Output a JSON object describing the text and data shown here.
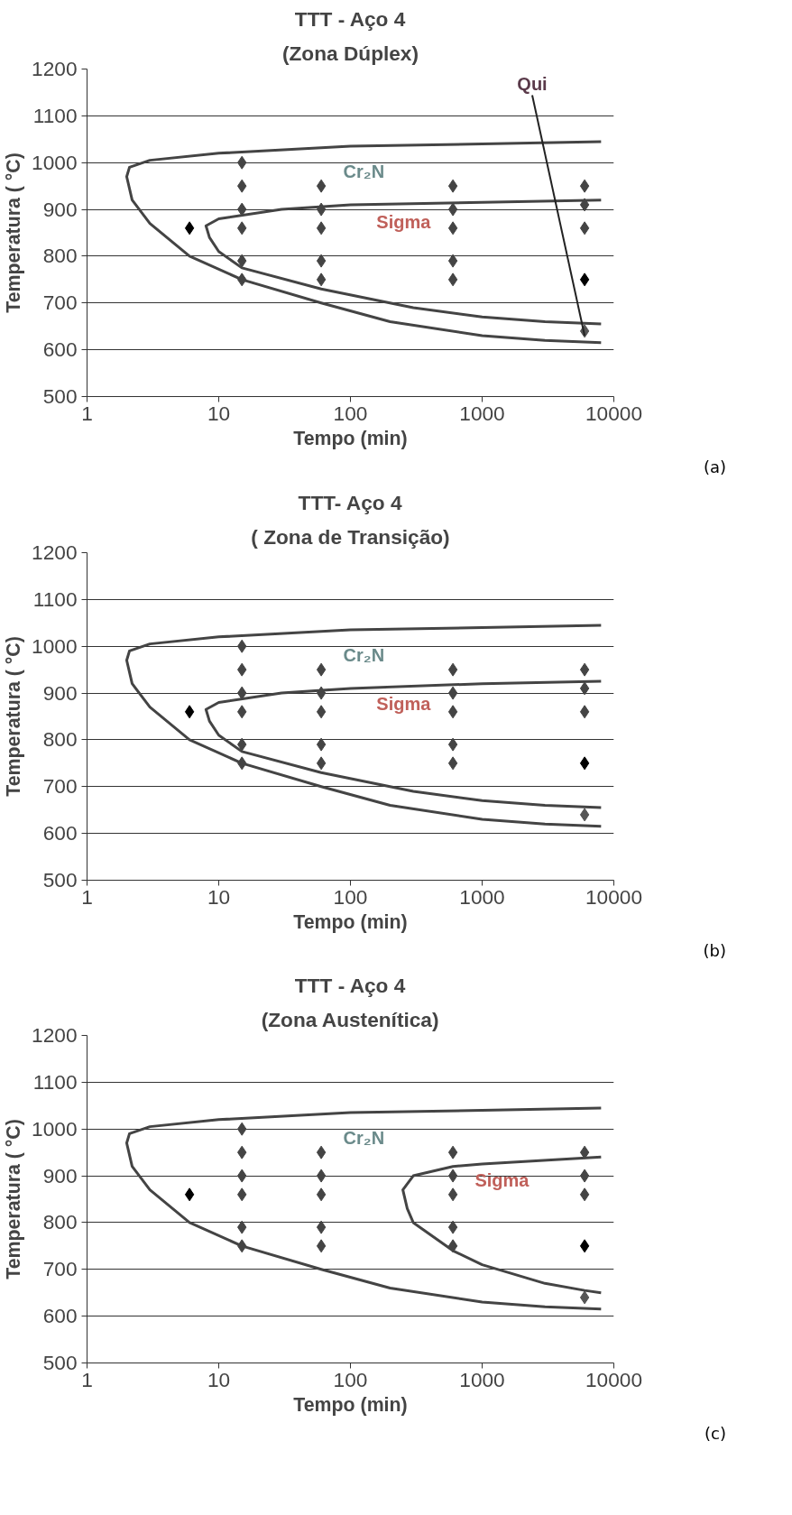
{
  "chart_data": [
    {
      "type": "scatter",
      "title": "TTT - Aço 4",
      "subtitle": "(Zona Dúplex)",
      "xlabel": "Tempo (min)",
      "ylabel": "Temperatura ( °C)",
      "log": "x",
      "xlim": [
        1,
        10000
      ],
      "xticks": [
        1,
        10,
        100,
        1000,
        10000
      ],
      "ylim": [
        500,
        1200
      ],
      "yticks": [
        500,
        600,
        700,
        800,
        900,
        1000,
        1100,
        1200
      ],
      "grid": "y",
      "annotations": [
        "Cr₂N",
        "Sigma",
        {
          "text": "Qui",
          "x": 6000,
          "y": 630
        },
        "(a)"
      ],
      "series": [
        {
          "marker": "diamond",
          "x": [
            6,
            15,
            15,
            15,
            15,
            15,
            15,
            60,
            60,
            60,
            60,
            60,
            600,
            600,
            600,
            600,
            600,
            6000,
            6000,
            6000,
            6000,
            6000
          ],
          "values": [
            860,
            1000,
            950,
            900,
            860,
            790,
            750,
            950,
            900,
            860,
            790,
            750,
            950,
            900,
            860,
            790,
            750,
            950,
            910,
            860,
            750,
            640
          ],
          "colors": [
            "#000000",
            "#444444",
            "#444444",
            "#444444",
            "#444444",
            "#444444",
            "#444444",
            "#444444",
            "#444444",
            "#444444",
            "#444444",
            "#444444",
            "#444444",
            "#444444",
            "#444444",
            "#444444",
            "#444444",
            "#444444",
            "#444444",
            "#444444",
            "#000000",
            "#555555"
          ]
        },
        {
          "type": "line",
          "marker": "none",
          "color": "#444444",
          "x": [
            8000,
            1000,
            100,
            10,
            3,
            2.1,
            2,
            2.2,
            3,
            6,
            15,
            60,
            200,
            1000,
            3000,
            8000
          ],
          "values": [
            1045,
            1040,
            1035,
            1020,
            1005,
            990,
            970,
            920,
            870,
            800,
            750,
            700,
            660,
            630,
            620,
            615
          ]
        },
        {
          "type": "line",
          "marker": "none",
          "color": "#444444",
          "x": [
            8000,
            1000,
            100,
            30,
            10,
            8,
            8.5,
            10,
            15,
            60,
            300,
            1000,
            3000,
            8000
          ],
          "values": [
            920,
            915,
            910,
            900,
            880,
            865,
            840,
            810,
            775,
            730,
            690,
            670,
            660,
            655
          ]
        }
      ]
    },
    {
      "type": "scatter",
      "title": "TTT- Aço 4",
      "subtitle": "( Zona de Transição)",
      "xlabel": "Tempo (min)",
      "ylabel": "Temperatura ( °C)",
      "log": "x",
      "xlim": [
        1,
        10000
      ],
      "xticks": [
        1,
        10,
        100,
        1000,
        10000
      ],
      "ylim": [
        500,
        1200
      ],
      "yticks": [
        500,
        600,
        700,
        800,
        900,
        1000,
        1100,
        1200
      ],
      "grid": "y",
      "annotations": [
        "Cr₂N",
        "Sigma",
        "(b)"
      ],
      "series": [
        {
          "marker": "diamond",
          "x": [
            6,
            15,
            15,
            15,
            15,
            15,
            15,
            60,
            60,
            60,
            60,
            60,
            600,
            600,
            600,
            600,
            600,
            6000,
            6000,
            6000,
            6000,
            6000
          ],
          "values": [
            860,
            1000,
            950,
            900,
            860,
            790,
            750,
            950,
            900,
            860,
            790,
            750,
            950,
            900,
            860,
            790,
            750,
            950,
            910,
            860,
            750,
            640
          ],
          "colors": [
            "#000000",
            "#444444",
            "#444444",
            "#444444",
            "#444444",
            "#444444",
            "#444444",
            "#444444",
            "#444444",
            "#444444",
            "#444444",
            "#444444",
            "#444444",
            "#444444",
            "#444444",
            "#444444",
            "#444444",
            "#444444",
            "#444444",
            "#444444",
            "#000000",
            "#555555"
          ]
        },
        {
          "type": "line",
          "marker": "none",
          "color": "#444444",
          "x": [
            8000,
            1000,
            100,
            10,
            3,
            2.1,
            2,
            2.2,
            3,
            6,
            15,
            60,
            200,
            1000,
            3000,
            8000
          ],
          "values": [
            1045,
            1040,
            1035,
            1020,
            1005,
            990,
            970,
            920,
            870,
            800,
            750,
            700,
            660,
            630,
            620,
            615
          ]
        },
        {
          "type": "line",
          "marker": "none",
          "color": "#444444",
          "x": [
            8000,
            1000,
            100,
            30,
            10,
            8,
            8.5,
            10,
            15,
            60,
            300,
            1000,
            3000,
            8000
          ],
          "values": [
            925,
            920,
            910,
            900,
            880,
            865,
            840,
            810,
            775,
            730,
            690,
            670,
            660,
            655
          ]
        }
      ]
    },
    {
      "type": "scatter",
      "title": "TTT - Aço 4",
      "subtitle": "(Zona Austenítica)",
      "xlabel": "Tempo (min)",
      "ylabel": "Temperatura ( °C)",
      "log": "x",
      "xlim": [
        1,
        10000
      ],
      "xticks": [
        1,
        10,
        100,
        1000,
        10000
      ],
      "ylim": [
        500,
        1200
      ],
      "yticks": [
        500,
        600,
        700,
        800,
        900,
        1000,
        1100,
        1200
      ],
      "grid": "y",
      "annotations": [
        "Cr₂N",
        "Sigma",
        "(c)"
      ],
      "series": [
        {
          "marker": "diamond",
          "x": [
            6,
            15,
            15,
            15,
            15,
            15,
            15,
            60,
            60,
            60,
            60,
            60,
            600,
            600,
            600,
            600,
            600,
            6000,
            6000,
            6000,
            6000,
            6000
          ],
          "values": [
            860,
            1000,
            950,
            900,
            860,
            790,
            750,
            950,
            900,
            860,
            790,
            750,
            950,
            900,
            860,
            790,
            750,
            950,
            900,
            860,
            750,
            640
          ],
          "colors": [
            "#000000",
            "#444444",
            "#444444",
            "#444444",
            "#444444",
            "#444444",
            "#444444",
            "#444444",
            "#444444",
            "#444444",
            "#444444",
            "#444444",
            "#444444",
            "#444444",
            "#444444",
            "#444444",
            "#444444",
            "#444444",
            "#444444",
            "#444444",
            "#000000",
            "#555555"
          ]
        },
        {
          "type": "line",
          "marker": "none",
          "color": "#444444",
          "x": [
            8000,
            1000,
            100,
            10,
            3,
            2.1,
            2,
            2.2,
            3,
            6,
            15,
            60,
            200,
            1000,
            3000,
            8000
          ],
          "values": [
            1045,
            1040,
            1035,
            1020,
            1005,
            990,
            970,
            920,
            870,
            800,
            750,
            700,
            660,
            630,
            620,
            615
          ]
        },
        {
          "type": "line",
          "marker": "none",
          "color": "#444444",
          "x": [
            8000,
            1000,
            600,
            300,
            250,
            270,
            300,
            600,
            1000,
            3000,
            6000,
            8000
          ],
          "values": [
            940,
            925,
            920,
            900,
            870,
            830,
            800,
            740,
            710,
            670,
            655,
            650
          ]
        }
      ]
    }
  ]
}
